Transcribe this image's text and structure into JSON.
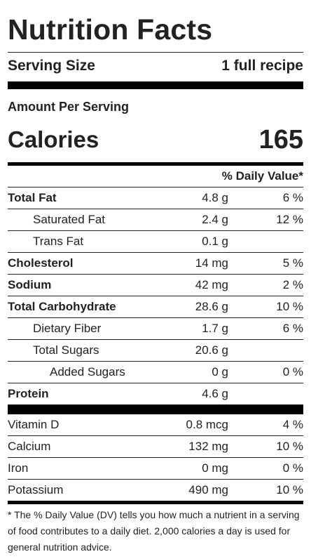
{
  "label": {
    "title": "Nutrition Facts",
    "serving_size_label": "Serving Size",
    "serving_size_value": "1 full recipe",
    "amount_per_serving": "Amount Per Serving",
    "calories_label": "Calories",
    "calories_value": "165",
    "dv_header": "% Daily Value*",
    "nutrients": [
      {
        "name": "Total Fat",
        "amount": "4.8 g",
        "dv": "6 %"
      },
      {
        "name": "Saturated Fat",
        "amount": "2.4 g",
        "dv": "12 %"
      },
      {
        "name": "Trans Fat",
        "amount": "0.1 g",
        "dv": ""
      },
      {
        "name": "Cholesterol",
        "amount": "14 mg",
        "dv": "5 %"
      },
      {
        "name": "Sodium",
        "amount": "42 mg",
        "dv": "2 %"
      },
      {
        "name": "Total Carbohydrate",
        "amount": "28.6 g",
        "dv": "10 %"
      },
      {
        "name": "Dietary Fiber",
        "amount": "1.7 g",
        "dv": "6 %"
      },
      {
        "name": "Total Sugars",
        "amount": "20.6 g",
        "dv": ""
      },
      {
        "name": "Added Sugars",
        "amount": "0 g",
        "dv": "0 %"
      },
      {
        "name": "Protein",
        "amount": "4.6 g",
        "dv": ""
      }
    ],
    "vitamins": [
      {
        "name": "Vitamin D",
        "amount": "0.8 mcg",
        "dv": "4 %"
      },
      {
        "name": "Calcium",
        "amount": "132 mg",
        "dv": "10 %"
      },
      {
        "name": "Iron",
        "amount": "0 mg",
        "dv": "0 %"
      },
      {
        "name": "Potassium",
        "amount": "490 mg",
        "dv": "10 %"
      }
    ],
    "footnote": "* The % Daily Value (DV) tells you how much a nutrient in a serving of food contributes to a daily diet. 2,000 calories a day is used for general nutrition advice."
  }
}
